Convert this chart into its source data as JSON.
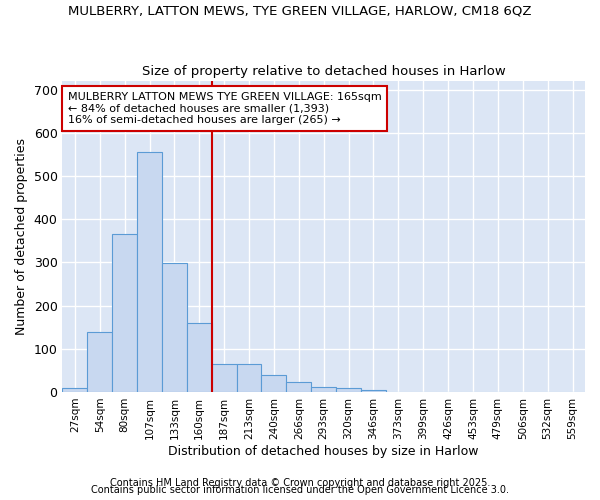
{
  "title1": "MULBERRY, LATTON MEWS, TYE GREEN VILLAGE, HARLOW, CM18 6QZ",
  "title2": "Size of property relative to detached houses in Harlow",
  "xlabel": "Distribution of detached houses by size in Harlow",
  "ylabel": "Number of detached properties",
  "categories": [
    "27sqm",
    "54sqm",
    "80sqm",
    "107sqm",
    "133sqm",
    "160sqm",
    "187sqm",
    "213sqm",
    "240sqm",
    "266sqm",
    "293sqm",
    "320sqm",
    "346sqm",
    "373sqm",
    "399sqm",
    "426sqm",
    "453sqm",
    "479sqm",
    "506sqm",
    "532sqm",
    "559sqm"
  ],
  "values": [
    10,
    140,
    365,
    555,
    298,
    160,
    65,
    65,
    40,
    22,
    12,
    10,
    4,
    0,
    0,
    0,
    0,
    0,
    0,
    0,
    0
  ],
  "bar_color": "#c8d8f0",
  "bar_edge_color": "#5b9bd5",
  "bg_color": "#ffffff",
  "plot_bg_color": "#dce6f5",
  "vline_x_index": 5,
  "vline_color": "#cc0000",
  "annotation_text": "MULBERRY LATTON MEWS TYE GREEN VILLAGE: 165sqm\n← 84% of detached houses are smaller (1,393)\n16% of semi-detached houses are larger (265) →",
  "annotation_box_color": "#ffffff",
  "annotation_box_edge": "#cc0000",
  "footer1": "Contains HM Land Registry data © Crown copyright and database right 2025.",
  "footer2": "Contains public sector information licensed under the Open Government Licence 3.0.",
  "ylim": [
    0,
    720
  ],
  "yticks": [
    0,
    100,
    200,
    300,
    400,
    500,
    600,
    700
  ]
}
